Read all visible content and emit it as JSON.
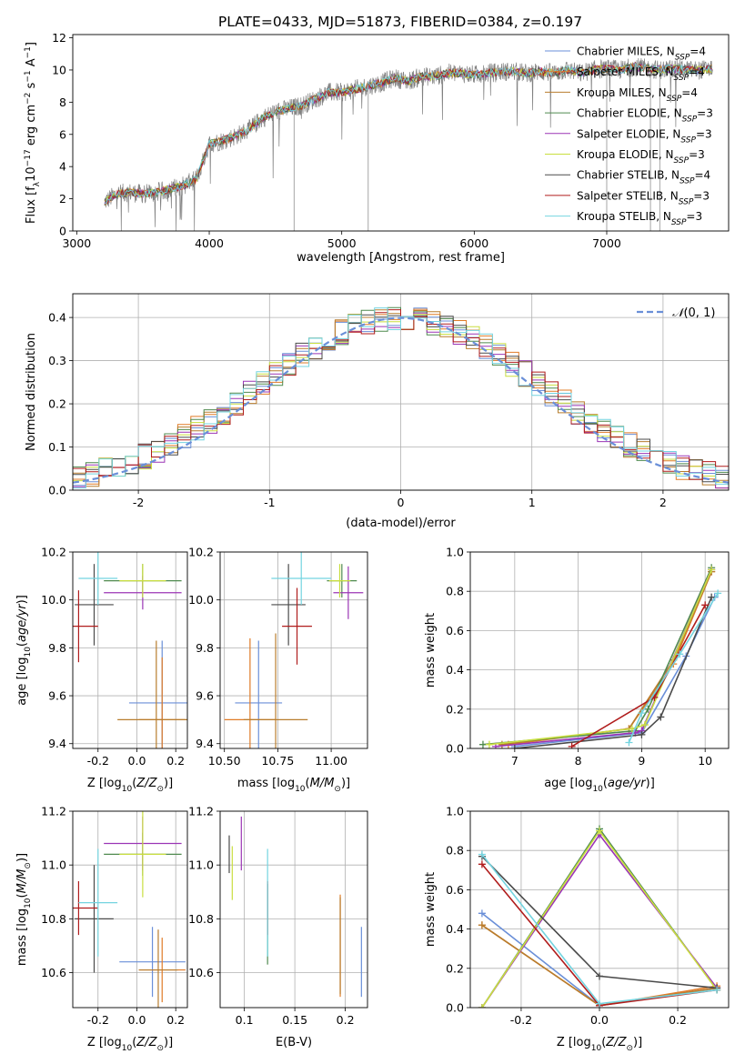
{
  "figure": {
    "title": "PLATE=0433, MJD=51873, FIBERID=0384, z=0.197"
  },
  "series_styles": [
    {
      "name": "Chabrier MILES",
      "n": "4",
      "color": "#6a8fd8"
    },
    {
      "name": "Salpeter MILES",
      "n": "4",
      "color": "#e07b27"
    },
    {
      "name": "Kroupa MILES",
      "n": "4",
      "color": "#b87d2e"
    },
    {
      "name": "Chabrier ELODIE",
      "n": "3",
      "color": "#4f8a4f"
    },
    {
      "name": "Salpeter ELODIE",
      "n": "3",
      "color": "#9b35b5"
    },
    {
      "name": "Kroupa ELODIE",
      "n": "3",
      "color": "#c9de3f"
    },
    {
      "name": "Chabrier STELIB",
      "n": "4",
      "color": "#4a4a4a"
    },
    {
      "name": "Salpeter STELIB",
      "n": "3",
      "color": "#b01c1c"
    },
    {
      "name": "Kroupa STELIB",
      "n": "3",
      "color": "#74d4e0"
    }
  ],
  "chart_data": [
    {
      "id": "spectrum",
      "type": "line",
      "xlabel": "wavelength [Angstrom, rest frame]",
      "ylabel": "Flux [f_λ 10^-17 erg cm^-2 s^-1 A^-1]",
      "xlim": [
        2970,
        7920
      ],
      "ylim": [
        0,
        12.2
      ],
      "xticks": [
        3000,
        4000,
        5000,
        6000,
        7000
      ],
      "yticks": [
        0,
        2,
        4,
        6,
        8,
        10,
        12
      ],
      "legend": "top-right",
      "data_color": "#808080",
      "x": [
        3210,
        3300,
        3400,
        3500,
        3600,
        3700,
        3800,
        3900,
        4000,
        4100,
        4200,
        4300,
        4400,
        4500,
        4600,
        4700,
        4800,
        4900,
        5000,
        5100,
        5200,
        5300,
        5400,
        5500,
        5600,
        5700,
        5800,
        5900,
        6000,
        6100,
        6200,
        6300,
        6400,
        6500,
        6600,
        6700,
        6800,
        6900,
        7000,
        7100,
        7200,
        7300,
        7400,
        7500,
        7600,
        7700,
        7800
      ],
      "model": [
        1.8,
        2.3,
        2.4,
        2.3,
        2.4,
        2.6,
        2.8,
        3.2,
        5.4,
        5.6,
        5.9,
        6.3,
        7.0,
        7.4,
        7.6,
        7.8,
        8.2,
        8.6,
        8.6,
        8.8,
        9.0,
        9.2,
        9.5,
        9.3,
        9.6,
        9.6,
        9.8,
        9.8,
        9.7,
        9.8,
        9.9,
        9.9,
        9.8,
        9.9,
        9.8,
        10.0,
        9.8,
        10.0,
        10.1,
        10.0,
        10.2,
        10.1,
        10.0,
        10.1,
        10.0,
        10.0,
        10.1
      ]
    },
    {
      "id": "residuals",
      "type": "line",
      "xlabel": "(data-model)/error",
      "ylabel": "Normed distribution",
      "xlim": [
        -2.5,
        2.5
      ],
      "ylim": [
        0,
        0.455
      ],
      "xticks": [
        -2,
        -1,
        0,
        1,
        2
      ],
      "yticks": [
        0.0,
        0.1,
        0.2,
        0.3,
        0.4
      ],
      "legend": "top-right",
      "normal_label": "N(0,1)",
      "normal_color": "#6a8fd8",
      "bin_width": 0.1
    },
    {
      "id": "age_vs_Z",
      "type": "scatter",
      "xlabel": "Z [log10(Z/Z⊙)]",
      "ylabel": "age [log10(age/yr)]",
      "xlim": [
        -0.33,
        0.26
      ],
      "ylim": [
        9.38,
        10.2
      ],
      "xticks": [
        -0.2,
        0.0,
        0.2
      ],
      "yticks": [
        9.4,
        9.6,
        9.8,
        10.0,
        10.2
      ],
      "points": [
        {
          "x": 0.13,
          "y": 9.57,
          "xerr": 0.17,
          "yerr": 0.26
        },
        {
          "x": 0.13,
          "y": 9.5,
          "xerr": 0.12,
          "yerr": 0.26
        },
        {
          "x": 0.1,
          "y": 9.5,
          "xerr": 0.2,
          "yerr": 0.33
        },
        {
          "x": 0.03,
          "y": 10.08,
          "xerr": 0.2,
          "yerr": 0.07
        },
        {
          "x": 0.03,
          "y": 10.03,
          "xerr": 0.2,
          "yerr": 0.07
        },
        {
          "x": 0.03,
          "y": 10.08,
          "xerr": 0.12,
          "yerr": 0.07
        },
        {
          "x": -0.22,
          "y": 9.98,
          "xerr": 0.1,
          "yerr": 0.17
        },
        {
          "x": -0.3,
          "y": 9.89,
          "xerr": 0.1,
          "yerr": 0.15
        },
        {
          "x": -0.2,
          "y": 10.09,
          "xerr": 0.1,
          "yerr": 0.11
        }
      ]
    },
    {
      "id": "age_vs_mass",
      "type": "scatter",
      "xlabel": "mass [log10(M/M⊙)]",
      "ylabel": "",
      "xlim": [
        10.48,
        11.17
      ],
      "ylim": [
        9.38,
        10.2
      ],
      "xticks": [
        10.5,
        10.75,
        11.0
      ],
      "yticks": [
        9.4,
        9.6,
        9.8,
        10.0,
        10.2
      ],
      "points": [
        {
          "x": 10.66,
          "y": 9.57,
          "xerr": 0.11,
          "yerr": 0.26
        },
        {
          "x": 10.62,
          "y": 9.5,
          "xerr": 0.12,
          "yerr": 0.34
        },
        {
          "x": 10.74,
          "y": 9.5,
          "xerr": 0.15,
          "yerr": 0.36
        },
        {
          "x": 11.05,
          "y": 10.08,
          "xerr": 0.07,
          "yerr": 0.07
        },
        {
          "x": 11.08,
          "y": 10.03,
          "xerr": 0.07,
          "yerr": 0.11
        },
        {
          "x": 11.04,
          "y": 10.08,
          "xerr": 0.05,
          "yerr": 0.07
        },
        {
          "x": 10.8,
          "y": 9.98,
          "xerr": 0.08,
          "yerr": 0.17
        },
        {
          "x": 10.84,
          "y": 9.89,
          "xerr": 0.07,
          "yerr": 0.16
        },
        {
          "x": 10.86,
          "y": 10.09,
          "xerr": 0.14,
          "yerr": 0.11
        }
      ]
    },
    {
      "id": "massweight_vs_age",
      "type": "line",
      "xlabel": "age [log10(age/yr)]",
      "ylabel": "mass weight",
      "xlim": [
        6.3,
        10.37
      ],
      "ylim": [
        0,
        1.0
      ],
      "xticks": [
        7,
        8,
        9,
        10
      ],
      "yticks": [
        0.0,
        0.2,
        0.4,
        0.6,
        0.8,
        1.0
      ],
      "series": [
        {
          "x": [
            7.0,
            9.0,
            9.7,
            10.15
          ],
          "y": [
            0.01,
            0.08,
            0.47,
            0.77
          ]
        },
        {
          "x": [
            6.9,
            8.8,
            9.5,
            10.1
          ],
          "y": [
            0.02,
            0.1,
            0.43,
            0.9
          ]
        },
        {
          "x": [
            6.8,
            8.8,
            9.5,
            10.1
          ],
          "y": [
            0.02,
            0.1,
            0.45,
            0.9
          ]
        },
        {
          "x": [
            6.5,
            8.9,
            9.1,
            10.1
          ],
          "y": [
            0.02,
            0.09,
            0.2,
            0.92
          ]
        },
        {
          "x": [
            6.7,
            8.9,
            9.0,
            10.1
          ],
          "y": [
            0.01,
            0.08,
            0.09,
            0.91
          ]
        },
        {
          "x": [
            6.6,
            8.85,
            9.05,
            10.1
          ],
          "y": [
            0.02,
            0.1,
            0.12,
            0.91
          ]
        },
        {
          "x": [
            7.0,
            9.0,
            9.3,
            10.1
          ],
          "y": [
            0.0,
            0.07,
            0.16,
            0.77
          ]
        },
        {
          "x": [
            7.9,
            9.2,
            10.0
          ],
          "y": [
            0.01,
            0.26,
            0.73
          ]
        },
        {
          "x": [
            8.8,
            9.0,
            9.6,
            10.2
          ],
          "y": [
            0.03,
            0.18,
            0.48,
            0.79
          ]
        }
      ]
    },
    {
      "id": "mass_vs_Z",
      "type": "scatter",
      "xlabel": "Z [log10(Z/Z⊙)]",
      "ylabel": "mass [log10(M/M⊙)]",
      "xlim": [
        -0.33,
        0.26
      ],
      "ylim": [
        10.47,
        11.2
      ],
      "xticks": [
        -0.2,
        0.0,
        0.2
      ],
      "yticks": [
        10.6,
        10.8,
        11.0,
        11.2
      ],
      "points": [
        {
          "x": 0.08,
          "y": 10.64,
          "xerr": 0.17,
          "yerr": 0.13
        },
        {
          "x": 0.13,
          "y": 10.61,
          "xerr": 0.12,
          "yerr": 0.12
        },
        {
          "x": 0.11,
          "y": 10.61,
          "xerr": 0.1,
          "yerr": 0.15
        },
        {
          "x": 0.03,
          "y": 11.04,
          "xerr": 0.2,
          "yerr": 0.08
        },
        {
          "x": 0.03,
          "y": 11.08,
          "xerr": 0.2,
          "yerr": 0.1
        },
        {
          "x": 0.03,
          "y": 11.04,
          "xerr": 0.12,
          "yerr": 0.16
        },
        {
          "x": -0.22,
          "y": 10.8,
          "xerr": 0.1,
          "yerr": 0.2
        },
        {
          "x": -0.3,
          "y": 10.84,
          "xerr": 0.1,
          "yerr": 0.1
        },
        {
          "x": -0.2,
          "y": 10.86,
          "xerr": 0.1,
          "yerr": 0.2
        }
      ]
    },
    {
      "id": "mass_vs_ebv",
      "type": "scatter",
      "xlabel": "E(B-V)",
      "ylabel": "",
      "xlim": [
        0.076,
        0.222
      ],
      "ylim": [
        10.47,
        11.2
      ],
      "xticks": [
        0.1,
        0.15,
        0.2
      ],
      "yticks": [
        10.6,
        10.8,
        11.0,
        11.2
      ],
      "points": [
        {
          "x": 0.216,
          "y": 10.64,
          "yerr": 0.13
        },
        {
          "x": 0.195,
          "y": 10.7,
          "yerr": 0.19
        },
        {
          "x": 0.195,
          "y": 10.7,
          "yerr": 0.18
        },
        {
          "x": 0.123,
          "y": 10.78,
          "yerr": 0.15
        },
        {
          "x": 0.097,
          "y": 11.08,
          "yerr": 0.1
        },
        {
          "x": 0.088,
          "y": 10.97,
          "yerr": 0.1
        },
        {
          "x": 0.085,
          "y": 11.04,
          "yerr": 0.07
        },
        {
          "x": 0.123,
          "y": 10.84,
          "yerr": 0.1
        },
        {
          "x": 0.123,
          "y": 10.86,
          "yerr": 0.2
        }
      ]
    },
    {
      "id": "massweight_vs_Z",
      "type": "line",
      "xlabel": "Z [log10(Z/Z⊙)]",
      "ylabel": "mass weight",
      "xlim": [
        -0.33,
        0.33
      ],
      "ylim": [
        0,
        1.0
      ],
      "xticks": [
        -0.2,
        0.0,
        0.2
      ],
      "yticks": [
        0.0,
        0.2,
        0.4,
        0.6,
        0.8,
        1.0
      ],
      "series": [
        {
          "x": [
            -0.3,
            0.0,
            0.3
          ],
          "y": [
            0.48,
            0.01,
            0.1
          ]
        },
        {
          "x": [
            -0.3,
            0.0,
            0.3
          ],
          "y": [
            0.42,
            0.01,
            0.11
          ]
        },
        {
          "x": [
            -0.3,
            0.0,
            0.3
          ],
          "y": [
            0.42,
            0.01,
            0.1
          ]
        },
        {
          "x": [
            -0.3,
            0.0,
            0.3
          ],
          "y": [
            0.0,
            0.91,
            0.09
          ]
        },
        {
          "x": [
            -0.3,
            0.0,
            0.3
          ],
          "y": [
            0.0,
            0.88,
            0.1
          ]
        },
        {
          "x": [
            -0.3,
            0.0,
            0.3
          ],
          "y": [
            0.0,
            0.9,
            0.09
          ]
        },
        {
          "x": [
            -0.3,
            0.0,
            0.3
          ],
          "y": [
            0.77,
            0.16,
            0.1
          ]
        },
        {
          "x": [
            -0.3,
            0.0,
            0.3
          ],
          "y": [
            0.73,
            0.01,
            0.09
          ]
        },
        {
          "x": [
            -0.3,
            0.0,
            0.3
          ],
          "y": [
            0.78,
            0.02,
            0.09
          ]
        }
      ]
    }
  ]
}
